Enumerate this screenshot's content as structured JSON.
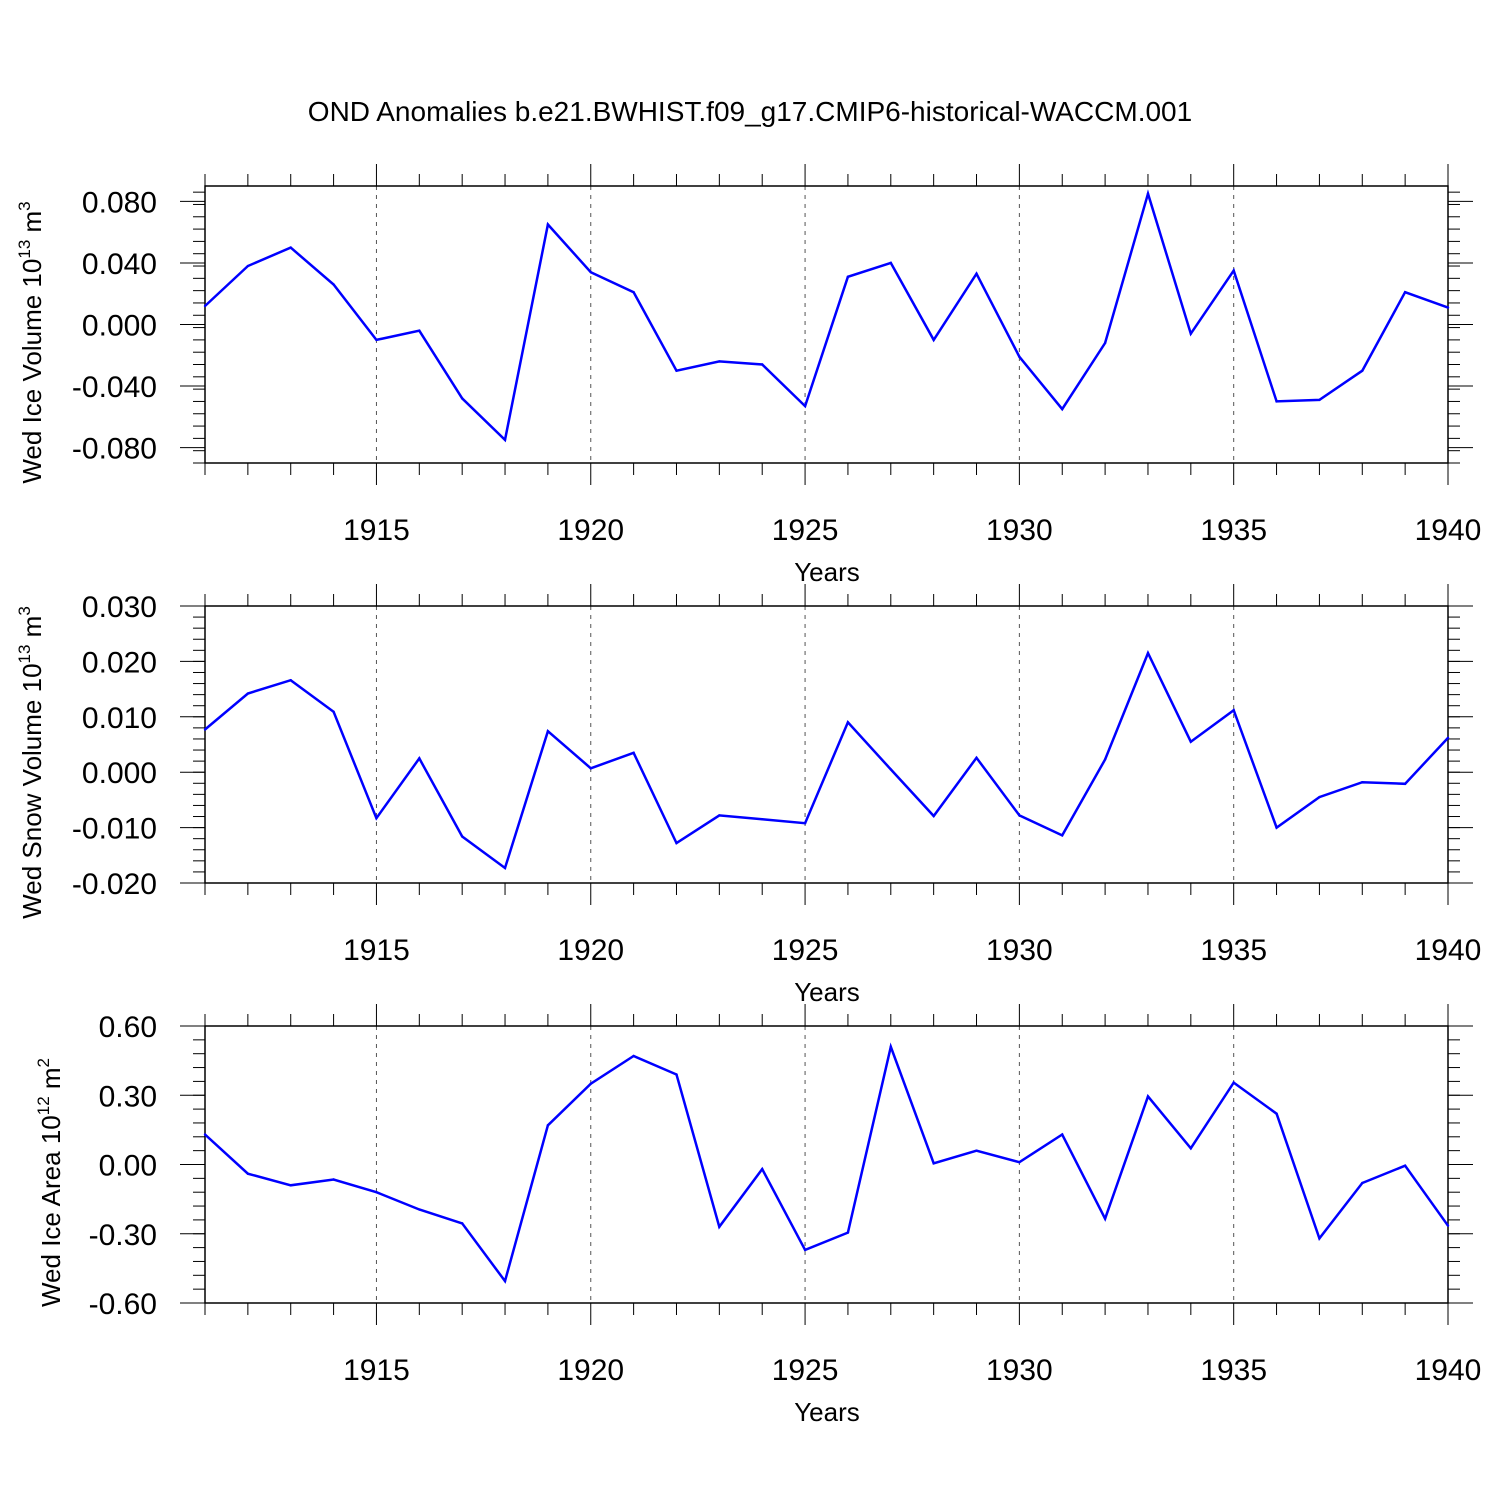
{
  "page": {
    "title": "OND Anomalies b.e21.BWHIST.f09_g17.CMIP6-historical-WACCM.001"
  },
  "chart_data": [
    {
      "type": "line",
      "xlabel": "Years",
      "ylabel": "Wed Ice Volume 10",
      "ylabel_exp": "13",
      "ylabel_unit": " m",
      "ylabel_unit_exp": "3",
      "xlim": [
        1911,
        1940
      ],
      "ylim": [
        -0.09,
        0.09
      ],
      "xticks": [
        1915,
        1920,
        1925,
        1930,
        1935,
        1940
      ],
      "xtick_labels": [
        "1915",
        "1920",
        "1925",
        "1930",
        "1935",
        "1940"
      ],
      "yticks": [
        -0.08,
        -0.04,
        0.0,
        0.04,
        0.08
      ],
      "ytick_labels": [
        "-0.080",
        "-0.040",
        "0.000",
        "0.040",
        "0.080"
      ],
      "grid": "dashed vertical at major x ticks",
      "color": "#0000ff",
      "x": [
        1911,
        1912,
        1913,
        1914,
        1915,
        1916,
        1917,
        1918,
        1919,
        1920,
        1921,
        1922,
        1923,
        1924,
        1925,
        1926,
        1927,
        1928,
        1929,
        1930,
        1931,
        1932,
        1933,
        1934,
        1935,
        1936,
        1937,
        1938,
        1939,
        1940
      ],
      "y": [
        0.012,
        0.038,
        0.05,
        0.026,
        -0.01,
        -0.004,
        -0.048,
        -0.075,
        0.065,
        0.034,
        0.021,
        -0.03,
        -0.024,
        -0.026,
        -0.053,
        0.031,
        0.04,
        -0.01,
        0.033,
        -0.021,
        -0.055,
        -0.012,
        0.085,
        -0.006,
        0.035,
        -0.05,
        -0.049,
        -0.03,
        0.021,
        0.011
      ]
    },
    {
      "type": "line",
      "xlabel": "Years",
      "ylabel": "Wed Snow Volume 10",
      "ylabel_exp": "13",
      "ylabel_unit": " m",
      "ylabel_unit_exp": "3",
      "xlim": [
        1911,
        1940
      ],
      "ylim": [
        -0.02,
        0.03
      ],
      "xticks": [
        1915,
        1920,
        1925,
        1930,
        1935,
        1940
      ],
      "xtick_labels": [
        "1915",
        "1920",
        "1925",
        "1930",
        "1935",
        "1940"
      ],
      "yticks": [
        -0.02,
        -0.01,
        0.0,
        0.01,
        0.02,
        0.03
      ],
      "ytick_labels": [
        "-0.020",
        "-0.010",
        "0.000",
        "0.010",
        "0.020",
        "0.030"
      ],
      "grid": "dashed vertical at major x ticks",
      "color": "#0000ff",
      "x": [
        1911,
        1912,
        1913,
        1914,
        1915,
        1916,
        1917,
        1918,
        1919,
        1920,
        1921,
        1922,
        1923,
        1924,
        1925,
        1926,
        1927,
        1928,
        1929,
        1930,
        1931,
        1932,
        1933,
        1934,
        1935,
        1936,
        1937,
        1938,
        1939,
        1940
      ],
      "y": [
        0.0077,
        0.0142,
        0.0166,
        0.0109,
        -0.0083,
        0.0025,
        -0.0116,
        -0.0173,
        0.0074,
        0.0007,
        0.0035,
        -0.0128,
        -0.0078,
        -0.0085,
        -0.0092,
        0.009,
        0.0005,
        -0.0079,
        0.0026,
        -0.0078,
        -0.0114,
        0.0023,
        0.0215,
        0.0055,
        0.0112,
        -0.01,
        -0.0045,
        -0.0018,
        -0.0021,
        0.0062
      ]
    },
    {
      "type": "line",
      "xlabel": "Years",
      "ylabel": "Wed Ice Area 10",
      "ylabel_exp": "12",
      "ylabel_unit": " m",
      "ylabel_unit_exp": "2",
      "xlim": [
        1911,
        1940
      ],
      "ylim": [
        -0.6,
        0.6
      ],
      "xticks": [
        1915,
        1920,
        1925,
        1930,
        1935,
        1940
      ],
      "xtick_labels": [
        "1915",
        "1920",
        "1925",
        "1930",
        "1935",
        "1940"
      ],
      "yticks": [
        -0.6,
        -0.3,
        0.0,
        0.3,
        0.6
      ],
      "ytick_labels": [
        "-0.60",
        "-0.30",
        "0.00",
        "0.30",
        "0.60"
      ],
      "grid": "dashed vertical at major x ticks",
      "color": "#0000ff",
      "x": [
        1911,
        1912,
        1913,
        1914,
        1915,
        1916,
        1917,
        1918,
        1919,
        1920,
        1921,
        1922,
        1923,
        1924,
        1925,
        1926,
        1927,
        1928,
        1929,
        1930,
        1931,
        1932,
        1933,
        1934,
        1935,
        1936,
        1937,
        1938,
        1939,
        1940
      ],
      "y": [
        0.13,
        -0.04,
        -0.09,
        -0.065,
        -0.12,
        -0.195,
        -0.255,
        -0.505,
        0.17,
        0.35,
        0.47,
        0.39,
        -0.27,
        -0.02,
        -0.37,
        -0.295,
        0.51,
        0.005,
        0.06,
        0.01,
        0.13,
        -0.235,
        0.295,
        0.07,
        0.355,
        0.22,
        -0.32,
        -0.08,
        -0.005,
        -0.265
      ]
    }
  ]
}
